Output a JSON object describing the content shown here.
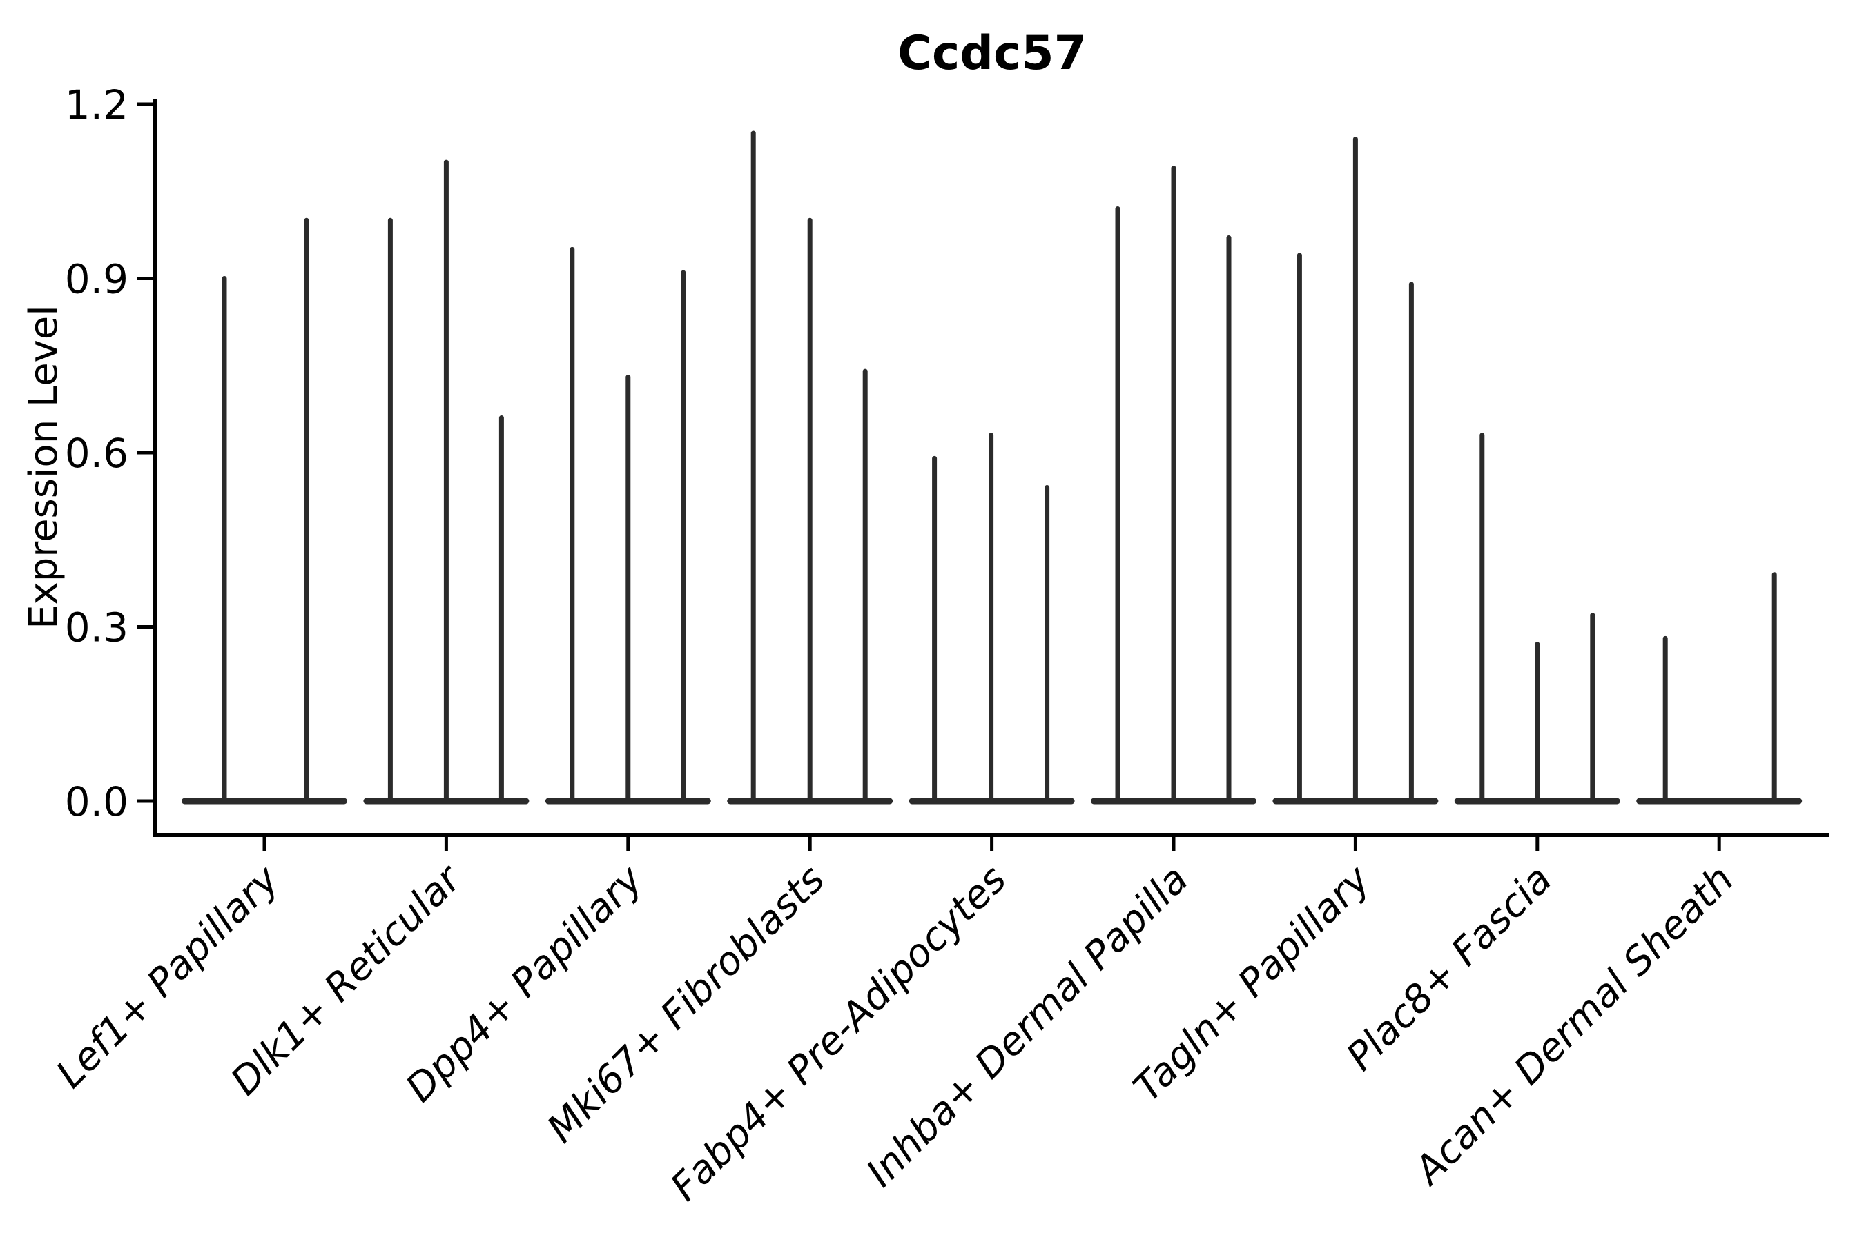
{
  "chart_data": {
    "type": "violin",
    "title": "Ccdc57",
    "ylabel": "Expression Level",
    "xlabel": "",
    "ylim": [
      0,
      1.2
    ],
    "yticks": [
      "0.0",
      "0.3",
      "0.6",
      "0.9",
      "1.2"
    ],
    "grid": false,
    "legend": "none",
    "style": "ultra-thin violin spikes with wide flat base at expression 0",
    "categories": [
      "Lef1+ Papillary",
      "Dlk1+ Reticular",
      "Dpp4+ Papillary",
      "Mki67+ Fibroblasts",
      "Fabp4+ Pre-Adipocytes",
      "Inhba+ Dermal Papilla",
      "Tagln+ Papillary",
      "Plac8+ Fascia",
      "Acan+ Dermal Sheath"
    ],
    "violins": [
      {
        "category": "Lef1+ Papillary",
        "spikes": [
          {
            "dx": -58,
            "max": 0.9
          },
          {
            "dx": 61,
            "max": 1.0
          }
        ]
      },
      {
        "category": "Dlk1+ Reticular",
        "spikes": [
          {
            "dx": -81,
            "max": 1.0
          },
          {
            "dx": 0,
            "max": 1.1
          },
          {
            "dx": 80,
            "max": 0.66
          }
        ]
      },
      {
        "category": "Dpp4+ Papillary",
        "spikes": [
          {
            "dx": -81,
            "max": 0.95
          },
          {
            "dx": 0,
            "max": 0.73
          },
          {
            "dx": 80,
            "max": 0.91
          }
        ]
      },
      {
        "category": "Mki67+ Fibroblasts",
        "spikes": [
          {
            "dx": -82,
            "max": 1.15
          },
          {
            "dx": 0,
            "max": 1.0
          },
          {
            "dx": 80,
            "max": 0.74
          }
        ]
      },
      {
        "category": "Fabp4+ Pre-Adipocytes",
        "spikes": [
          {
            "dx": -83,
            "max": 0.59
          },
          {
            "dx": -1,
            "max": 0.63
          },
          {
            "dx": 80,
            "max": 0.54
          }
        ]
      },
      {
        "category": "Inhba+ Dermal Papilla",
        "spikes": [
          {
            "dx": -81,
            "max": 1.02
          },
          {
            "dx": 0,
            "max": 1.09
          },
          {
            "dx": 80,
            "max": 0.97
          }
        ]
      },
      {
        "category": "Tagln+ Papillary",
        "spikes": [
          {
            "dx": -81,
            "max": 0.94
          },
          {
            "dx": 0,
            "max": 1.14
          },
          {
            "dx": 81,
            "max": 0.89
          }
        ]
      },
      {
        "category": "Plac8+ Fascia",
        "spikes": [
          {
            "dx": -80,
            "max": 0.63
          },
          {
            "dx": 0,
            "max": 0.27
          },
          {
            "dx": 80,
            "max": 0.32
          }
        ]
      },
      {
        "category": "Acan+ Dermal Sheath",
        "spikes": [
          {
            "dx": -78,
            "max": 0.28
          },
          {
            "dx": 80,
            "max": 0.39
          }
        ]
      }
    ],
    "colors": {
      "violin": "#2b2b2b",
      "axis": "#000000",
      "text": "#000000",
      "background": "#ffffff"
    }
  }
}
